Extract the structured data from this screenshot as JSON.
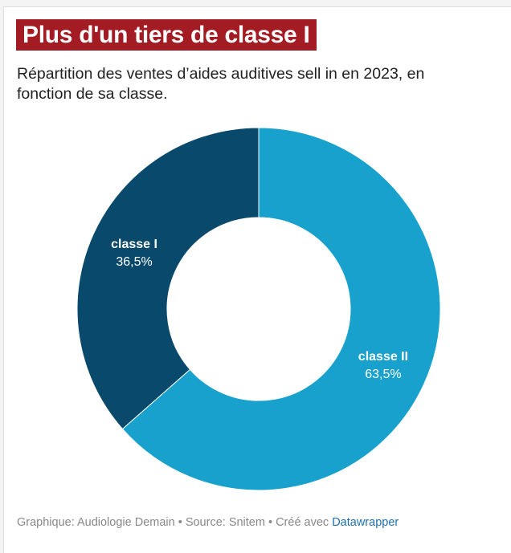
{
  "title": "Plus d'un tiers de classe I",
  "subtitle": "Répartition des ventes d’aides auditives sell in en 2023, en fonction de sa classe.",
  "chart_data": {
    "type": "pie",
    "donut": true,
    "slices": [
      {
        "label": "classe II",
        "value": 63.5,
        "value_label": "63,5%",
        "color": "#18a1cd"
      },
      {
        "label": "classe I",
        "value": 36.5,
        "value_label": "36,5%",
        "color": "#09496c"
      }
    ]
  },
  "footer": {
    "text": "Graphique: Audiologie Demain • Source: Snitem • Créé avec ",
    "link": "Datawrapper"
  },
  "colors": {
    "title_bg": "#a31c23",
    "link": "#1d6fb5"
  }
}
